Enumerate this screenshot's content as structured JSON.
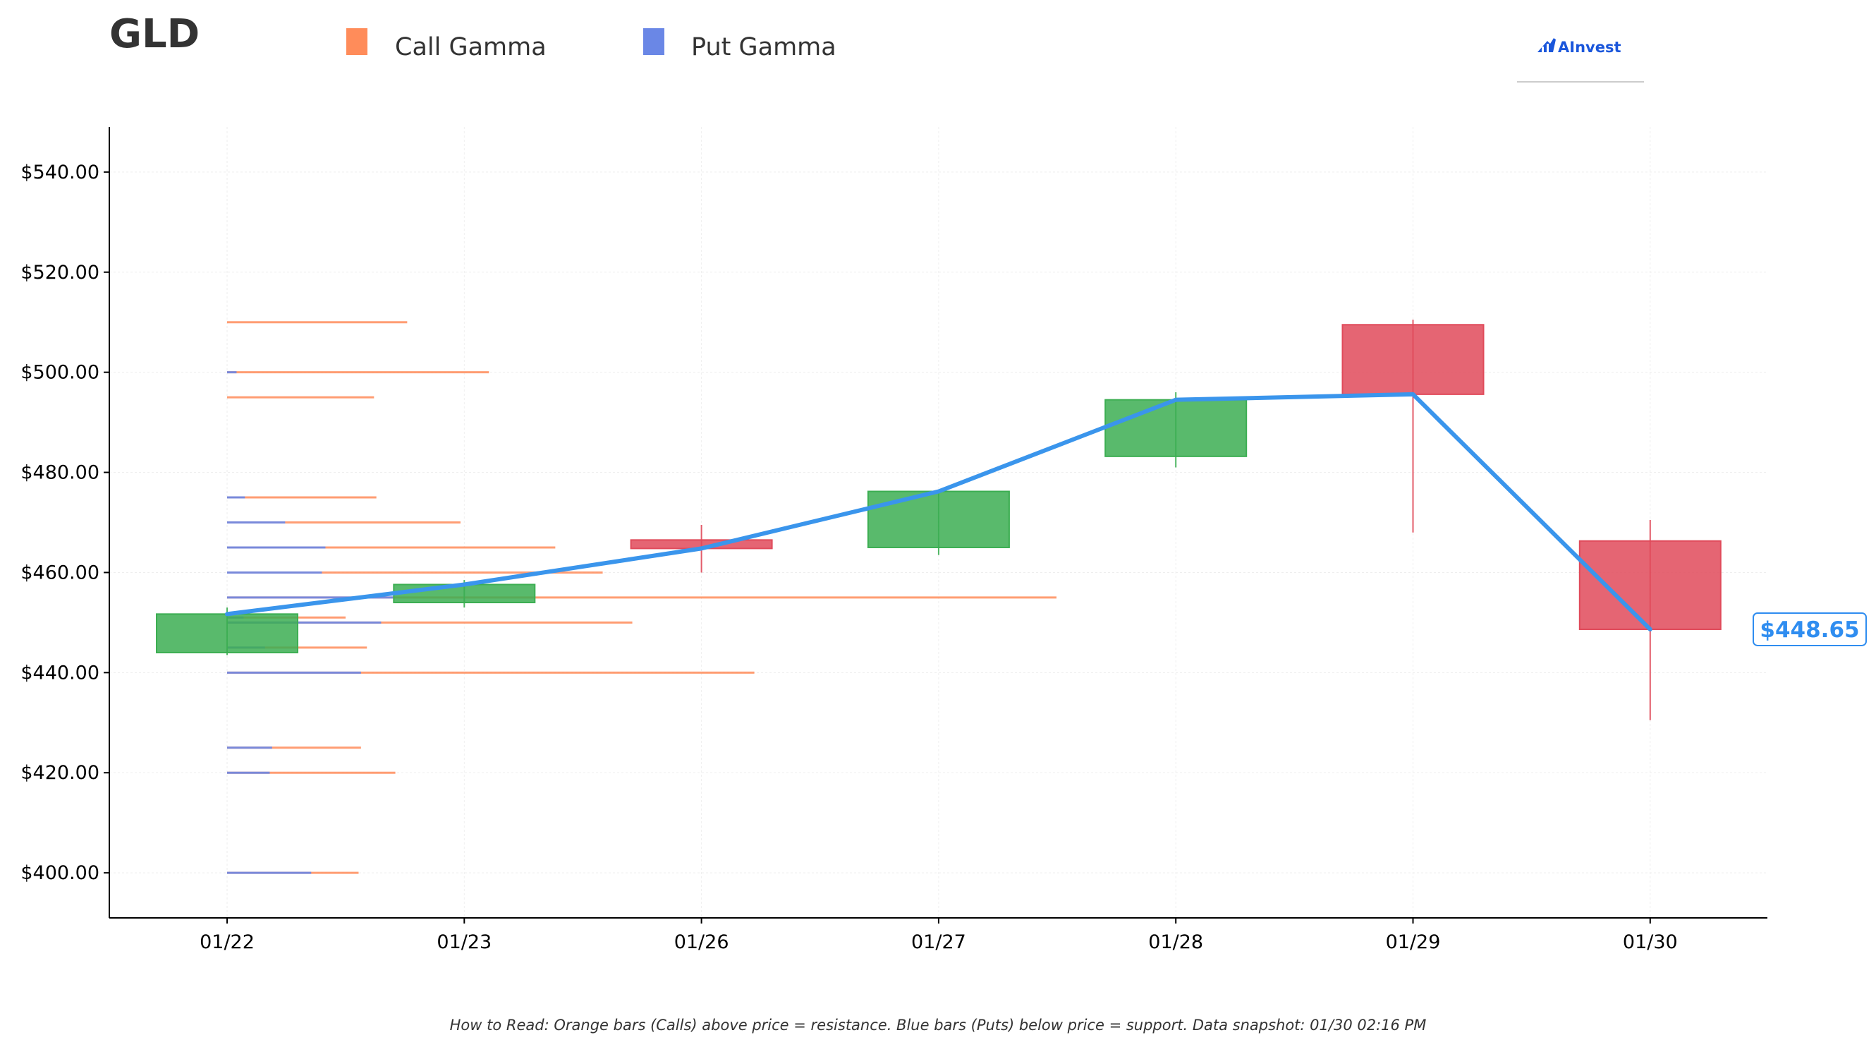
{
  "header": {
    "ticker": "GLD",
    "logo_text": "AInvest"
  },
  "legend": {
    "items": [
      {
        "label": "Call Gamma",
        "color": "#ff8c5a"
      },
      {
        "label": "Put Gamma",
        "color": "#6a87e6"
      }
    ]
  },
  "footer": {
    "note": "How to Read: Orange bars (Calls) above price = resistance. Blue bars (Puts) below price = support. Data snapshot: 01/30 02:16 PM"
  },
  "chart_data": {
    "type": "candlestick",
    "categories": [
      "01/22",
      "01/23",
      "01/26",
      "01/27",
      "01/28",
      "01/29",
      "01/30"
    ],
    "ylim": [
      391,
      549
    ],
    "yticks": [
      400,
      420,
      440,
      460,
      480,
      500,
      520,
      540
    ],
    "ytick_labels": [
      "$400.00",
      "$420.00",
      "$440.00",
      "$460.00",
      "$480.00",
      "$500.00",
      "$520.00",
      "$540.00"
    ],
    "grid": true,
    "legend_position": "top",
    "colors": {
      "up": "#3cae52",
      "down": "#e04a5a",
      "line": "#3a95ec",
      "call": "#ff8c5a",
      "put": "#6a87e6"
    },
    "ohlc": [
      {
        "x": "01/22",
        "open": 444.0,
        "high": 453.0,
        "low": 443.5,
        "close": 451.7
      },
      {
        "x": "01/23",
        "open": 454.0,
        "high": 458.5,
        "low": 453.0,
        "close": 457.6
      },
      {
        "x": "01/26",
        "open": 466.5,
        "high": 469.5,
        "low": 460.0,
        "close": 464.8
      },
      {
        "x": "01/27",
        "open": 465.0,
        "high": 476.2,
        "low": 463.5,
        "close": 476.2
      },
      {
        "x": "01/28",
        "open": 483.2,
        "high": 496.0,
        "low": 481.0,
        "close": 494.5
      },
      {
        "x": "01/29",
        "open": 509.5,
        "high": 510.5,
        "low": 468.0,
        "close": 495.6
      },
      {
        "x": "01/30",
        "open": 466.3,
        "high": 470.5,
        "low": 430.5,
        "close": 448.65
      }
    ],
    "close_line": [
      451.7,
      457.6,
      464.8,
      476.2,
      494.5,
      495.6,
      448.65
    ],
    "current_price_label": "$448.65",
    "gamma_levels": [
      {
        "strike": 510,
        "call": 1.52,
        "put": 0.0
      },
      {
        "strike": 500,
        "call": 2.21,
        "put": 0.08
      },
      {
        "strike": 495,
        "call": 1.24,
        "put": 0.0
      },
      {
        "strike": 475,
        "call": 1.26,
        "put": 0.15
      },
      {
        "strike": 470,
        "call": 1.97,
        "put": 0.49
      },
      {
        "strike": 465,
        "call": 2.77,
        "put": 0.83
      },
      {
        "strike": 460,
        "call": 3.17,
        "put": 0.8
      },
      {
        "strike": 455,
        "call": 7.0,
        "put": 1.4
      },
      {
        "strike": 451,
        "call": 1.0,
        "put": 0.14
      },
      {
        "strike": 450,
        "call": 3.42,
        "put": 1.3
      },
      {
        "strike": 445,
        "call": 1.18,
        "put": 0.32
      },
      {
        "strike": 440,
        "call": 4.45,
        "put": 1.13
      },
      {
        "strike": 425,
        "call": 1.13,
        "put": 0.38
      },
      {
        "strike": 420,
        "call": 1.42,
        "put": 0.36
      },
      {
        "strike": 400,
        "call": 1.11,
        "put": 0.71
      }
    ]
  }
}
